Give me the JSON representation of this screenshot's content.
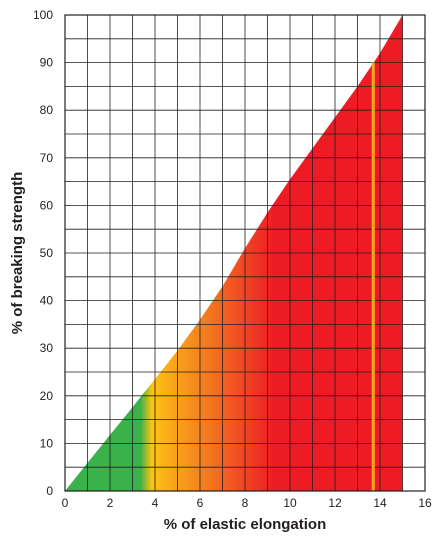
{
  "chart_data": {
    "type": "area",
    "title": "",
    "xlabel": "% of elastic elongation",
    "ylabel": "% of breaking strength",
    "xlim": [
      0,
      16
    ],
    "ylim": [
      0,
      100
    ],
    "x_ticks": [
      0,
      2,
      4,
      6,
      8,
      10,
      12,
      14,
      16
    ],
    "y_ticks": [
      0,
      10,
      20,
      30,
      40,
      50,
      60,
      70,
      80,
      90,
      100
    ],
    "grid": true,
    "grid_step_x": 1,
    "grid_step_y": 5,
    "series": [
      {
        "x": [
          0,
          1,
          2,
          3,
          3.4,
          4,
          5,
          6,
          7,
          8,
          9,
          10,
          11,
          12,
          13,
          14,
          15
        ],
        "y": [
          0,
          5.9,
          11.8,
          17.6,
          20,
          23.5,
          29.5,
          36,
          43,
          51,
          58.5,
          65.5,
          72,
          78.5,
          85,
          92,
          100
        ]
      }
    ],
    "marker_line": {
      "x": 13.7,
      "y_max": 90,
      "color": "#f7a823"
    },
    "gradient_colors": {
      "green": "#3bb14a",
      "yellow": "#fcc314",
      "orange": "#f47d20",
      "red": "#ed1c24"
    },
    "grid_color": "#231f20"
  }
}
